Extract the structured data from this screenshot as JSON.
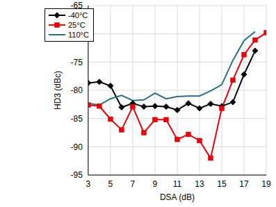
{
  "chart_data": {
    "type": "line",
    "x_label": "DSA (dB)",
    "y_label": "HD3 (dBc)",
    "x": [
      3,
      4,
      5,
      6,
      7,
      8,
      9,
      10,
      11,
      12,
      13,
      14,
      15,
      16,
      17,
      18,
      19
    ],
    "series": [
      {
        "name": "-40°C",
        "color": "#000000",
        "marker": "diamond",
        "values": [
          -78.7,
          -78.5,
          -79.2,
          -83.0,
          -82.3,
          -82.9,
          -82.8,
          -82.9,
          -83.5,
          -82.3,
          -83.2,
          -82.4,
          -82.8,
          -82.1,
          -77.2,
          -73.0,
          null
        ]
      },
      {
        "name": "25°C",
        "color": "#e8000b",
        "marker": "square",
        "values": [
          -82.6,
          -82.8,
          -85.1,
          -87.0,
          -82.9,
          -87.5,
          -85.2,
          -85.2,
          -88.7,
          -87.8,
          -88.9,
          -92.0,
          -83.2,
          -78.2,
          -73.7,
          -71.1,
          -69.8
        ]
      },
      {
        "name": "110°C",
        "color": "#2a6f7f",
        "marker": "none",
        "values": [
          -82.3,
          -82.6,
          -81.5,
          -80.9,
          -81.8,
          -81.7,
          -80.5,
          -81.5,
          -81.1,
          -81.0,
          -81.0,
          -80.1,
          -79.0,
          -74.7,
          -71.2,
          -69.6,
          null
        ]
      }
    ],
    "xlim": [
      3,
      19
    ],
    "xticks": [
      3,
      5,
      7,
      9,
      11,
      13,
      15,
      17,
      19
    ],
    "ylim": [
      -95,
      -65
    ],
    "yticks": [
      -95,
      -90,
      -85,
      -80,
      -75,
      -70,
      -65
    ],
    "grid": true,
    "legend": "upper left"
  }
}
